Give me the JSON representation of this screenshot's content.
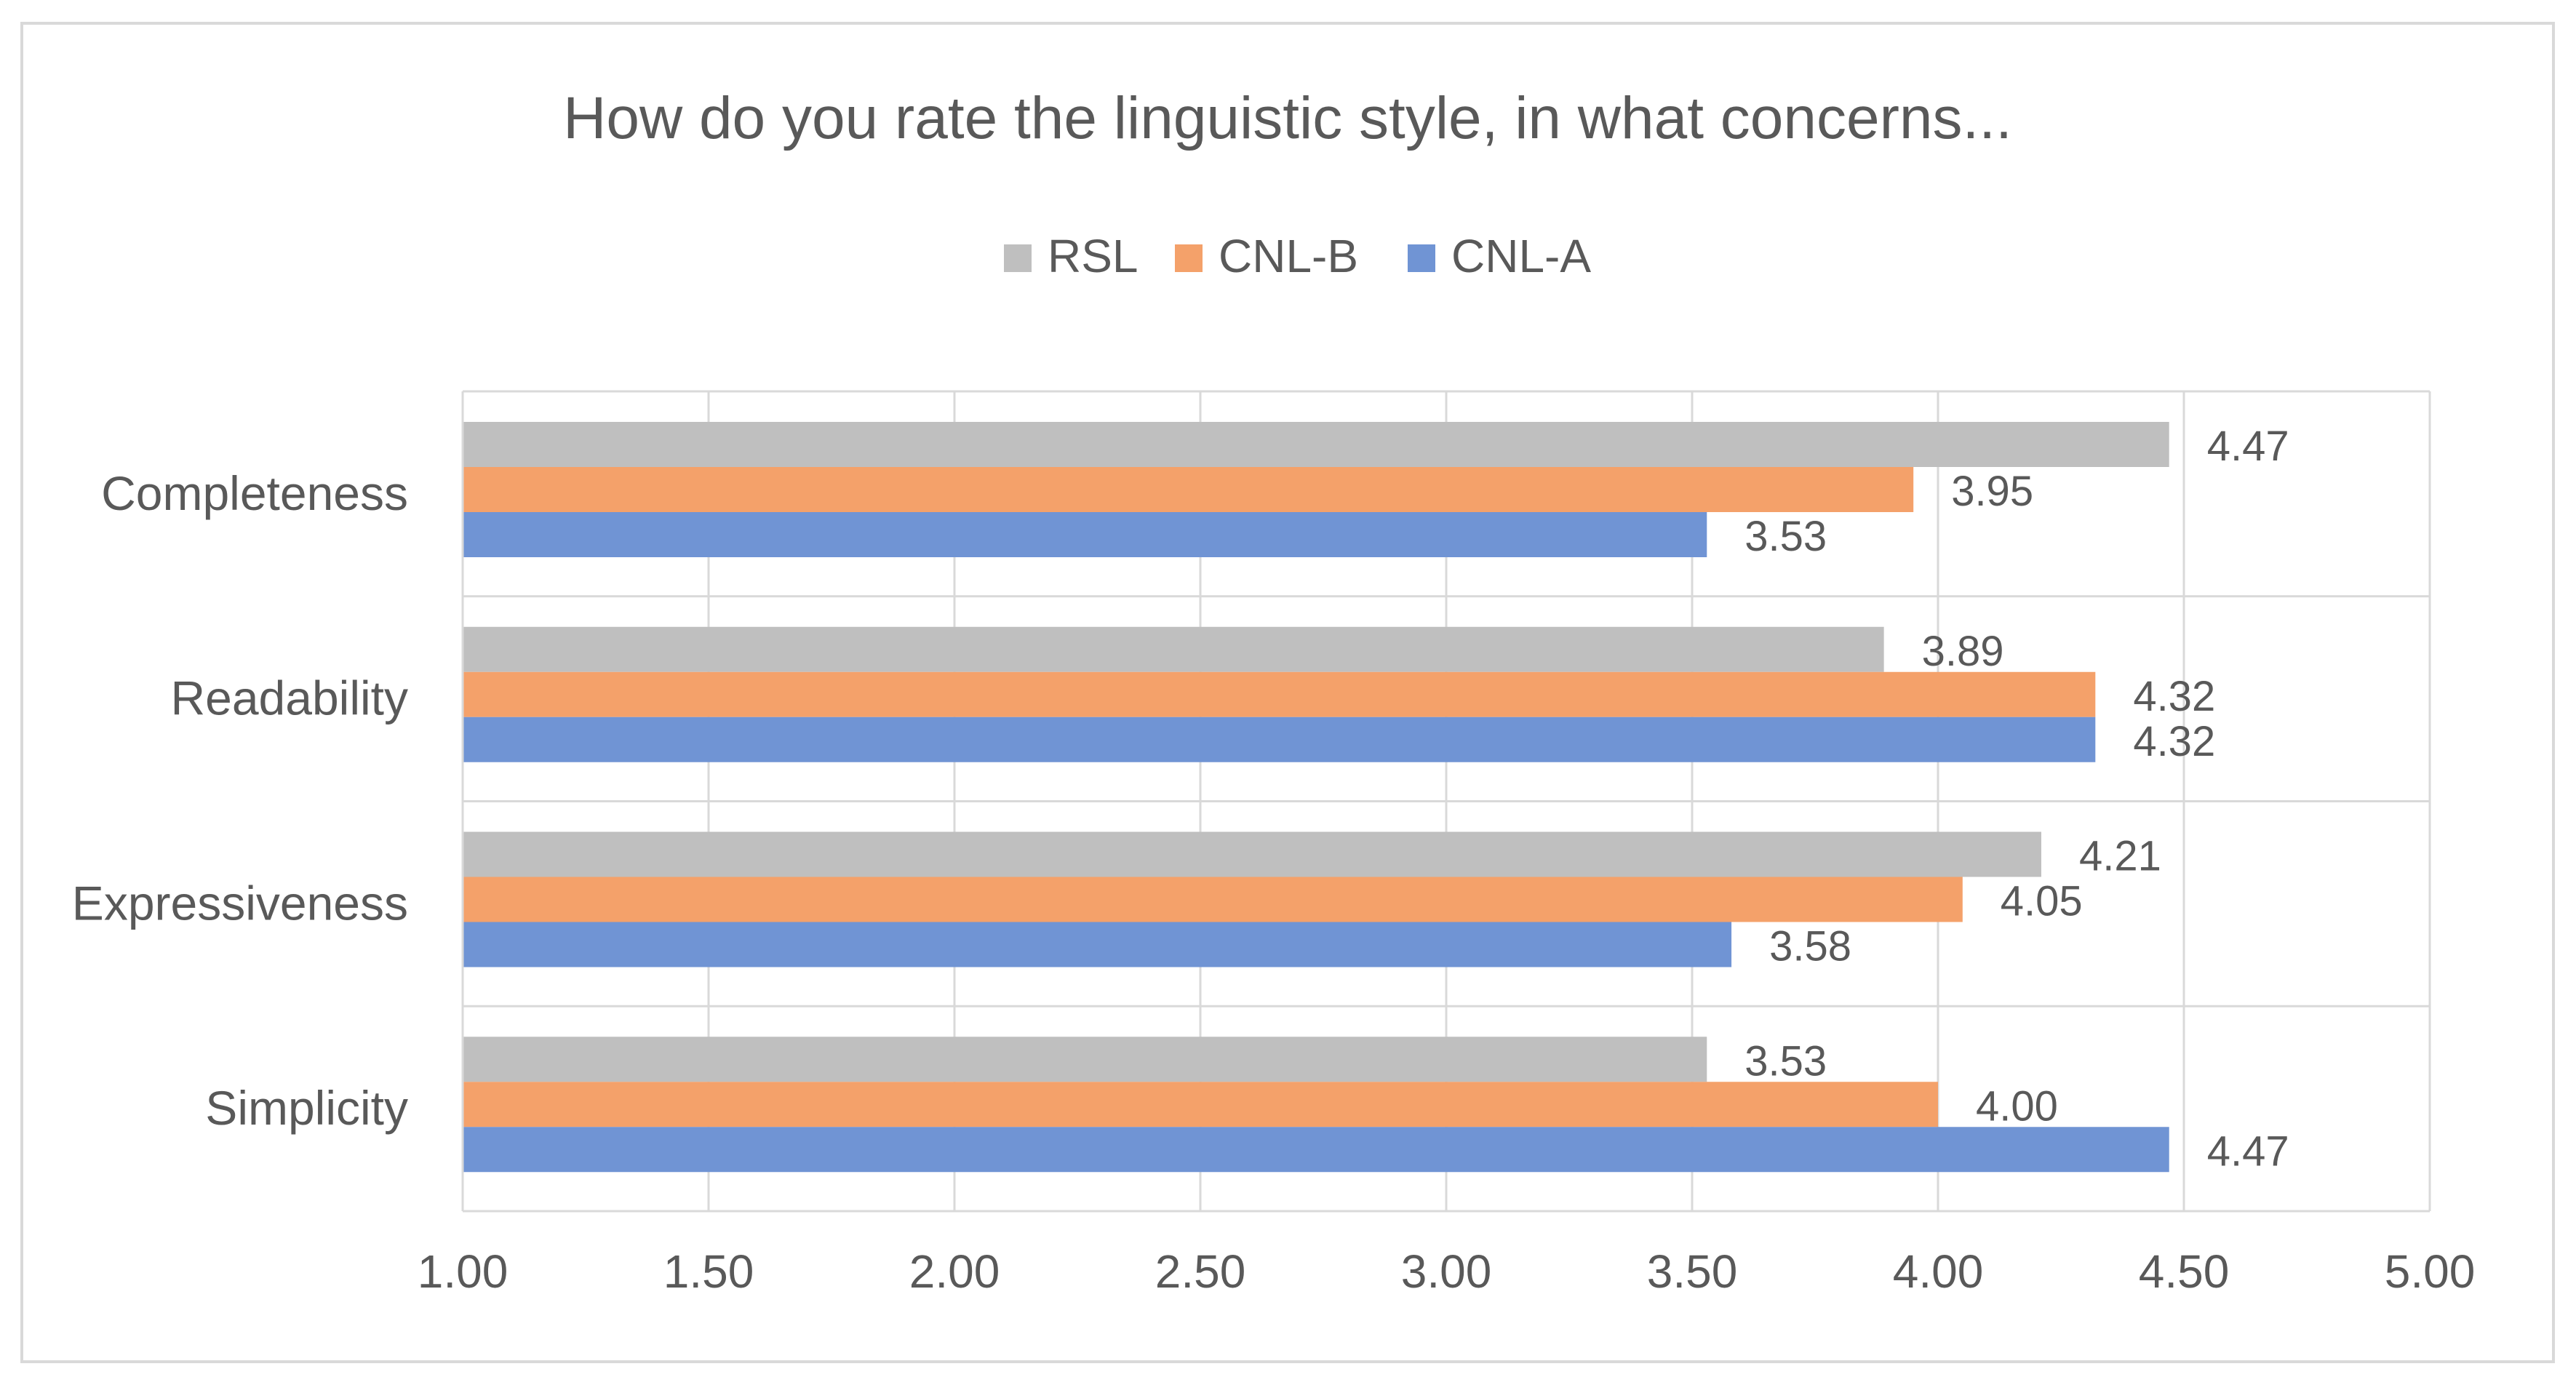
{
  "chart_data": {
    "type": "bar",
    "orientation": "horizontal",
    "title": "How do you rate the linguistic style, in what concerns...",
    "xlabel": "",
    "ylabel": "",
    "categories": [
      "Completeness",
      "Readability",
      "Expressiveness",
      "Simplicity"
    ],
    "series": [
      {
        "name": "RSL",
        "color": "#bfbfbf",
        "values": [
          4.47,
          3.89,
          4.21,
          3.53
        ],
        "labels": [
          "4.47",
          "3.89",
          "4.21",
          "3.53"
        ]
      },
      {
        "name": "CNL-B",
        "color": "#f4a16a",
        "values": [
          3.95,
          4.32,
          4.05,
          4.0
        ],
        "labels": [
          "3.95",
          "4.32",
          "4.05",
          "4.00"
        ]
      },
      {
        "name": "CNL-A",
        "color": "#7094d4",
        "values": [
          3.53,
          4.32,
          3.58,
          4.47
        ],
        "labels": [
          "3.53",
          "4.32",
          "3.58",
          "4.47"
        ]
      }
    ],
    "xlim": [
      1.0,
      5.0
    ],
    "xticks": [
      "1.00",
      "1.50",
      "2.00",
      "2.50",
      "3.00",
      "3.50",
      "4.00",
      "4.50",
      "5.00"
    ],
    "grid": true,
    "legend_position": "top"
  }
}
